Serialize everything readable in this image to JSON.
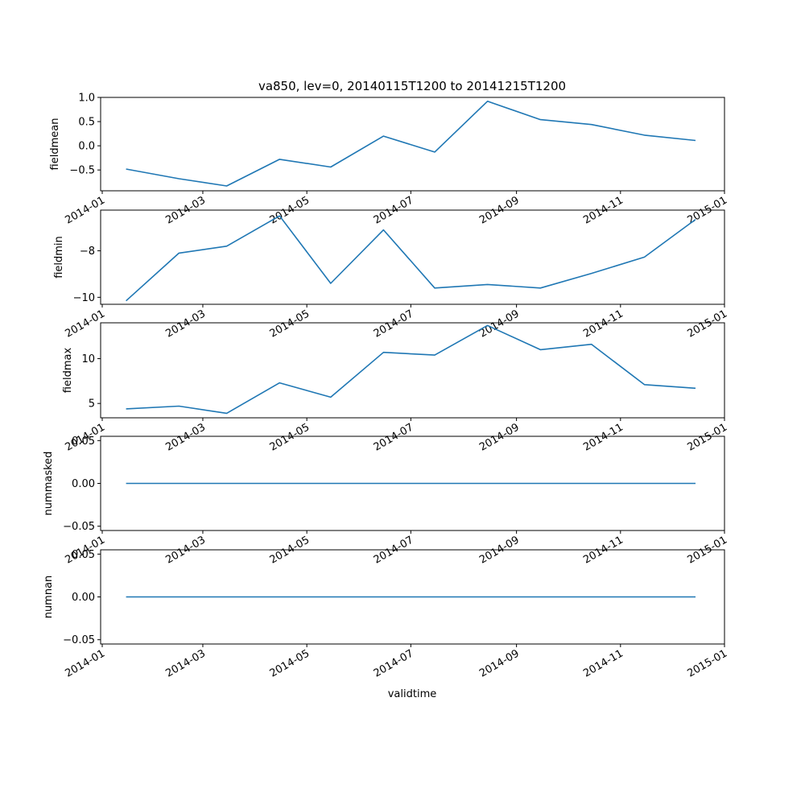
{
  "chart_data": {
    "type": "line",
    "title": "va850, lev=0, 20140115T1200 to 20141215T1200",
    "xlabel": "validtime",
    "line_color": "#1f77b4",
    "x": [
      "2014-01-15",
      "2014-02-15",
      "2014-03-15",
      "2014-04-15",
      "2014-05-15",
      "2014-06-15",
      "2014-07-15",
      "2014-08-15",
      "2014-09-15",
      "2014-10-15",
      "2014-11-15",
      "2014-12-15"
    ],
    "x_ticks": [
      "2014-01",
      "2014-03",
      "2014-05",
      "2014-07",
      "2014-09",
      "2014-11",
      "2015-01"
    ],
    "panels": [
      {
        "name": "fieldmean",
        "ylabel": "fieldmean",
        "ylim": [
          -0.93,
          1.0
        ],
        "yticks": [
          1.0,
          0.5,
          0.0,
          -0.5
        ],
        "ytick_labels": [
          "1.0",
          "0.5",
          "0.0",
          "−0.5"
        ],
        "values": [
          -0.48,
          -0.68,
          -0.83,
          -0.28,
          -0.44,
          0.2,
          -0.13,
          0.92,
          0.54,
          0.44,
          0.22,
          0.11
        ]
      },
      {
        "name": "fieldmin",
        "ylabel": "fieldmin",
        "ylim": [
          -10.3,
          -6.25
        ],
        "yticks": [
          -8,
          -10
        ],
        "ytick_labels": [
          "−8",
          "−10"
        ],
        "values": [
          -10.15,
          -8.1,
          -7.8,
          -6.5,
          -9.4,
          -7.1,
          -9.6,
          -9.45,
          -9.6,
          -8.97,
          -8.27,
          -6.65
        ]
      },
      {
        "name": "fieldmax",
        "ylabel": "fieldmax",
        "ylim": [
          3.4,
          14.0
        ],
        "yticks": [
          10,
          5
        ],
        "ytick_labels": [
          "10",
          "5"
        ],
        "values": [
          4.4,
          4.7,
          3.9,
          7.3,
          5.7,
          10.7,
          10.4,
          13.7,
          11.0,
          11.6,
          7.1,
          6.7
        ]
      },
      {
        "name": "nummasked",
        "ylabel": "nummasked",
        "ylim": [
          -0.055,
          0.055
        ],
        "yticks": [
          0.05,
          0.0,
          -0.05
        ],
        "ytick_labels": [
          "0.05",
          "0.00",
          "−0.05"
        ],
        "values": [
          0,
          0,
          0,
          0,
          0,
          0,
          0,
          0,
          0,
          0,
          0,
          0
        ]
      },
      {
        "name": "numnan",
        "ylabel": "numnan",
        "ylim": [
          -0.055,
          0.055
        ],
        "yticks": [
          0.05,
          0.0,
          -0.05
        ],
        "ytick_labels": [
          "0.05",
          "0.00",
          "−0.05"
        ],
        "values": [
          0,
          0,
          0,
          0,
          0,
          0,
          0,
          0,
          0,
          0,
          0,
          0
        ]
      }
    ]
  }
}
